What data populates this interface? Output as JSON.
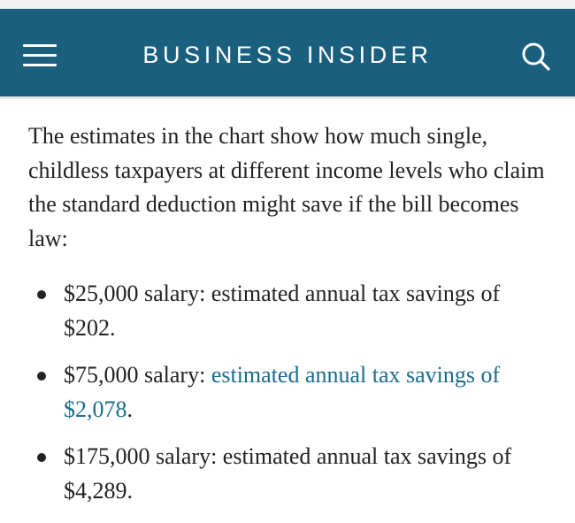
{
  "header": {
    "logo": "BUSINESS INSIDER",
    "menu_icon": "hamburger-menu-icon",
    "search_icon": "search-icon",
    "background_color": "#1b5f7f"
  },
  "article": {
    "intro": "The estimates in the chart show how much single, childless taxpayers at different income levels who claim the standard deduction might save if the bill becomes law:",
    "bullets": [
      {
        "text": "$25,000 salary: estimated annual tax savings of $202."
      },
      {
        "prefix": "$75,000 salary: ",
        "link_text": "estimated annual tax savings of $2,078",
        "suffix": "."
      },
      {
        "text": "$175,000 salary: estimated annual tax savings of $4,289."
      }
    ],
    "link_color": "#1b6b8e"
  }
}
